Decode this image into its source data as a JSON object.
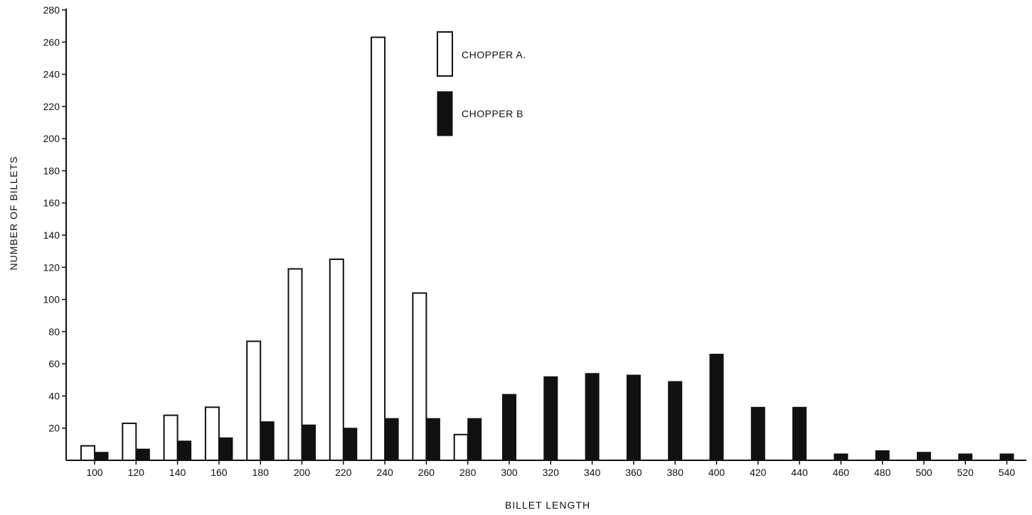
{
  "chart_data": {
    "type": "bar",
    "xlabel": "BILLET LENGTH",
    "ylabel": "NUMBER OF BILLETS",
    "ylim": [
      0,
      280
    ],
    "yticks": [
      20,
      40,
      60,
      80,
      100,
      120,
      140,
      160,
      180,
      200,
      220,
      240,
      260,
      280
    ],
    "categories": [
      "100",
      "120",
      "140",
      "160",
      "180",
      "200",
      "220",
      "240",
      "260",
      "280",
      "300",
      "320",
      "340",
      "360",
      "380",
      "400",
      "420",
      "440",
      "460",
      "480",
      "500",
      "520",
      "540"
    ],
    "series": [
      {
        "name": "CHOPPER A.",
        "style": "hollow",
        "values": [
          9,
          23,
          28,
          33,
          74,
          119,
          125,
          263,
          104,
          16,
          0,
          0,
          0,
          0,
          0,
          0,
          0,
          0,
          0,
          0,
          0,
          0,
          0
        ]
      },
      {
        "name": "CHOPPER B",
        "style": "filled",
        "values": [
          5,
          7,
          12,
          14,
          24,
          22,
          20,
          26,
          26,
          26,
          41,
          52,
          54,
          53,
          49,
          66,
          33,
          33,
          4,
          6,
          5,
          4,
          4
        ]
      }
    ],
    "legend": "top-center",
    "grid": false
  }
}
